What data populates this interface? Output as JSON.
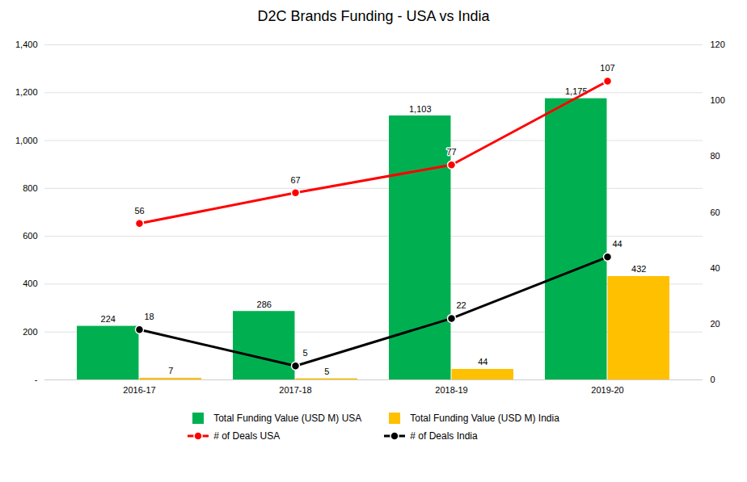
{
  "chart_data": {
    "type": "bar",
    "title": "D2C Brands Funding - USA vs India",
    "categories": [
      "2016-17",
      "2017-18",
      "2018-19",
      "2019-20"
    ],
    "series": [
      {
        "name": "Total Funding Value (USD M) USA",
        "type": "bar",
        "color": "#00B050",
        "values": [
          224,
          286,
          1103,
          1175
        ],
        "value_labels": [
          "224",
          "286",
          "1,103",
          "1,175"
        ]
      },
      {
        "name": "Total Funding Value (USD M) India",
        "type": "bar",
        "color": "#FFC000",
        "values": [
          7,
          5,
          44,
          432
        ]
      },
      {
        "name": "# of Deals USA",
        "type": "line",
        "axis": "y2",
        "color": "#FF0000",
        "marker": "circle",
        "values": [
          56,
          67,
          77,
          107
        ]
      },
      {
        "name": "# of Deals India",
        "type": "line",
        "axis": "y2",
        "color": "#000000",
        "marker": "circle",
        "values": [
          18,
          5,
          22,
          44
        ]
      }
    ],
    "ylim": [
      0,
      1400
    ],
    "yticks": [
      {
        "value": 0,
        "label": "-"
      },
      200,
      400,
      600,
      800,
      {
        "value": 1000,
        "label": "1,000"
      },
      {
        "value": 1200,
        "label": "1,200"
      },
      {
        "value": 1400,
        "label": "1,400"
      }
    ],
    "y2lim": [
      0,
      120
    ],
    "y2ticks": [
      0,
      20,
      40,
      60,
      80,
      100,
      120
    ],
    "grid": true,
    "data_labels": true,
    "legend": "bottom"
  }
}
